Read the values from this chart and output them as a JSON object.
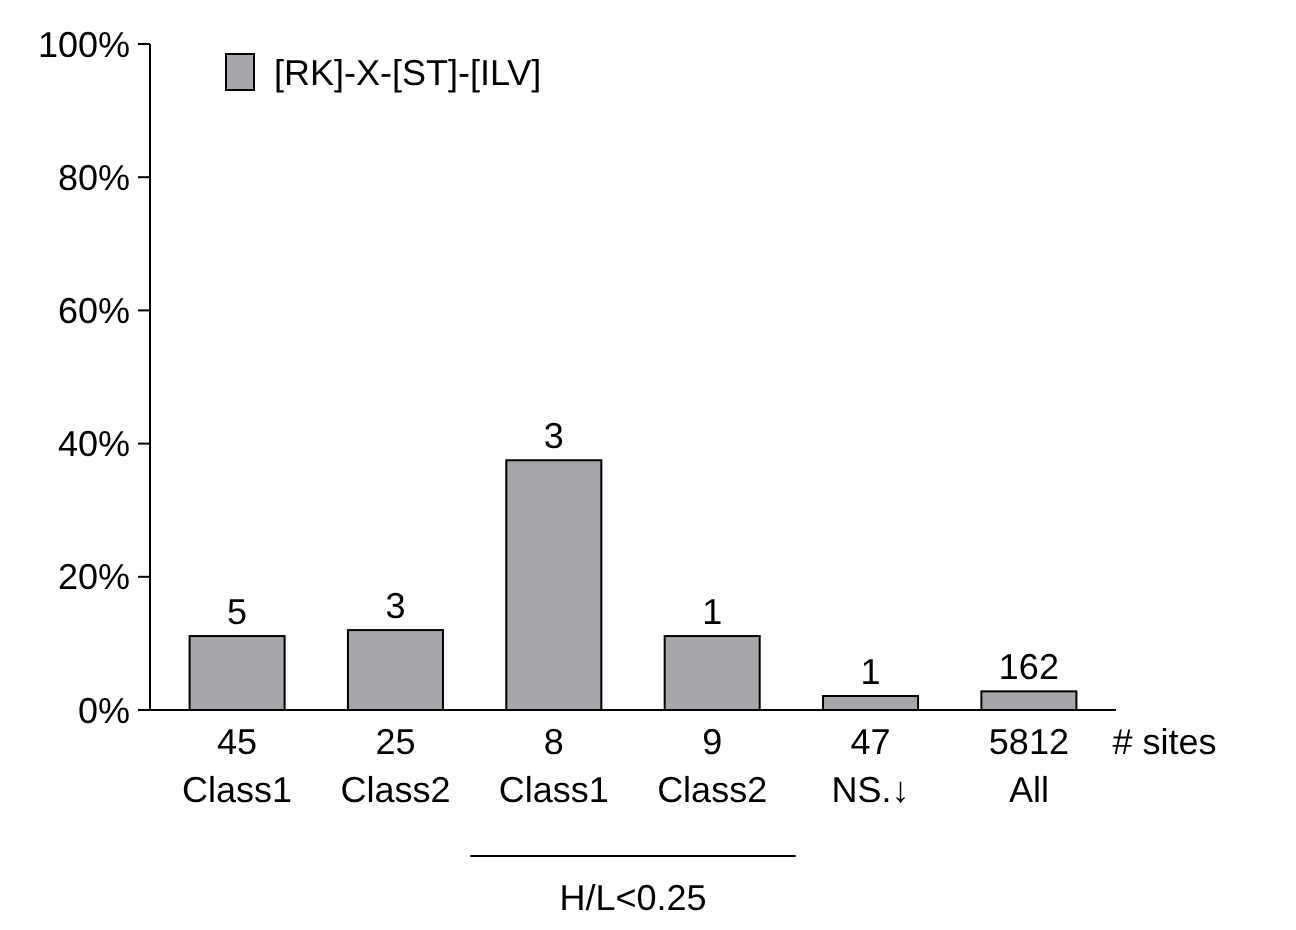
{
  "chart_data": {
    "type": "bar",
    "categories": [
      "45\nClass1",
      "25\nClass2",
      "8\nClass1",
      "9\nClass2",
      "47\nNS.↓",
      "5812\nAll"
    ],
    "series": [
      {
        "name": "[RK]-X-[ST]-[ILV]",
        "color": "#a7a6ab",
        "values": [
          11.1,
          12,
          37.5,
          11.1,
          2.1,
          2.8
        ]
      }
    ],
    "ylim": [
      0,
      100
    ],
    "yticks": [
      {
        "value": 0,
        "label": "0%"
      },
      {
        "value": 20,
        "label": "20%"
      },
      {
        "value": 40,
        "label": "40%"
      },
      {
        "value": 60,
        "label": "60%"
      },
      {
        "value": 80,
        "label": "80%"
      },
      {
        "value": 100,
        "label": "100%"
      }
    ],
    "annotations": [
      "# sites",
      "H/L<0.25",
      {
        "text": "5",
        "x": "45\nClass1",
        "y": 11.1
      },
      {
        "text": "3",
        "x": "25\nClass2",
        "y": 12
      },
      {
        "text": "3",
        "x": "8\nClass1",
        "y": 37.5
      },
      {
        "text": "1",
        "x": "9\nClass2",
        "y": 11.1
      },
      {
        "text": "1",
        "x": "47\nNS.↓",
        "y": 2.1
      },
      {
        "text": "162",
        "x": "5812\nAll",
        "y": 2.8
      }
    ],
    "legend": "top left",
    "grid": false
  }
}
